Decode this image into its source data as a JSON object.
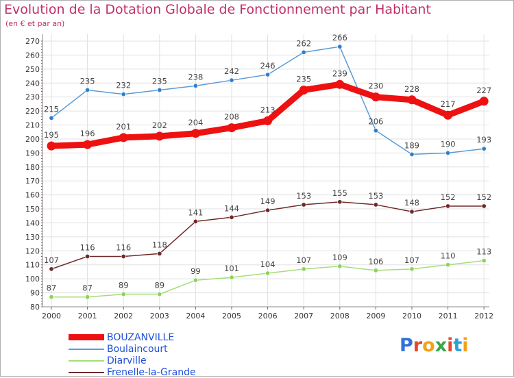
{
  "header": {
    "title": "Evolution de la Dotation Globale de Fonctionnement par Habitant",
    "subtitle": "(en € et par an)"
  },
  "chart_data": {
    "type": "line",
    "x": [
      "2000",
      "2001",
      "2002",
      "2003",
      "2004",
      "2005",
      "2006",
      "2007",
      "2008",
      "2009",
      "2010",
      "2011",
      "2012"
    ],
    "ylim": [
      80,
      270
    ],
    "yticks": [
      80,
      90,
      100,
      110,
      120,
      130,
      140,
      150,
      160,
      170,
      180,
      190,
      200,
      210,
      220,
      230,
      240,
      250,
      260,
      270
    ],
    "grid": true,
    "series": [
      {
        "name": "Boulaincourt",
        "color": "#5b9bd5",
        "marker": "#2f7fd0",
        "values": [
          215,
          235,
          232,
          235,
          238,
          242,
          246,
          262,
          266,
          206,
          189,
          190,
          193
        ],
        "bold": false
      },
      {
        "name": "Diarville",
        "color": "#a4dd78",
        "marker": "#8ed25a",
        "values": [
          87,
          87,
          89,
          89,
          99,
          101,
          104,
          107,
          109,
          106,
          107,
          110,
          113
        ],
        "bold": false
      },
      {
        "name": "Frenelle-la-Grande",
        "color": "#6e2a2a",
        "marker": "#6e2a2a",
        "values": [
          107,
          116,
          116,
          118,
          141,
          144,
          149,
          153,
          155,
          153,
          148,
          152,
          152
        ],
        "bold": false
      },
      {
        "name": "BOUZANVILLE",
        "color": "#ee1111",
        "marker": "#ee1111",
        "values": [
          195,
          196,
          201,
          202,
          204,
          208,
          213,
          235,
          239,
          230,
          228,
          217,
          227
        ],
        "bold": true
      }
    ]
  },
  "legend": {
    "items": [
      {
        "label": "BOUZANVILLE",
        "color": "#ee1111",
        "thick": true
      },
      {
        "label": "Boulaincourt",
        "color": "#5b9bd5",
        "thick": false
      },
      {
        "label": "Diarville",
        "color": "#a4dd78",
        "thick": false
      },
      {
        "label": "Frenelle-la-Grande",
        "color": "#6e2a2a",
        "thick": false
      }
    ]
  },
  "logo": {
    "letters": [
      "P",
      "r",
      "o",
      "x",
      "i",
      "t",
      "i"
    ],
    "colors": [
      "#2f6fd8",
      "#e04a2c",
      "#f2a11a",
      "#3aa84a",
      "#e04a2c",
      "#2f9fd8",
      "#f2a11a"
    ]
  }
}
